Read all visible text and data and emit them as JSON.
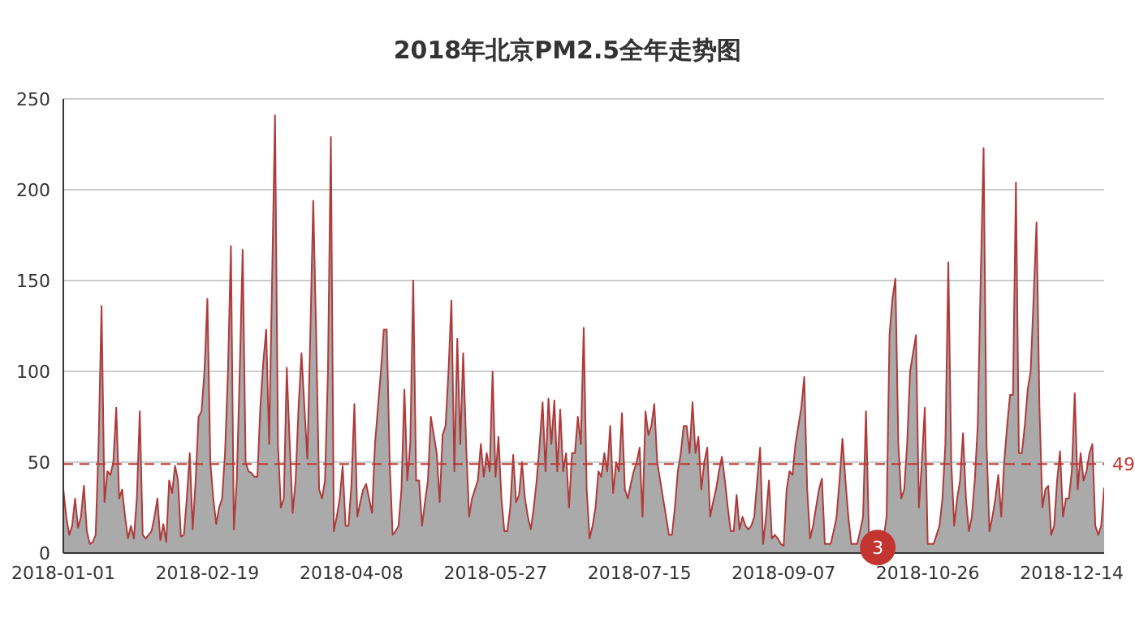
{
  "chart_data": {
    "type": "area",
    "title": "2018年北京PM2.5全年走势图",
    "categories": [
      "2018-01-01",
      null,
      null,
      null,
      null,
      null,
      null,
      null,
      null,
      null,
      null,
      null,
      null,
      null,
      null,
      null,
      null,
      null,
      null,
      null,
      null,
      null,
      null,
      null,
      null,
      null,
      null,
      null,
      null,
      null,
      null,
      null,
      null,
      null,
      null,
      null,
      null,
      null,
      null,
      null,
      null,
      null,
      null,
      null,
      null,
      null,
      null,
      null,
      null,
      "2018-02-19",
      null,
      null,
      null,
      null,
      null,
      null,
      null,
      null,
      null,
      null,
      null,
      null,
      null,
      null,
      null,
      null,
      null,
      null,
      null,
      null,
      null,
      null,
      null,
      null,
      null,
      null,
      null,
      null,
      null,
      null,
      null,
      null,
      null,
      null,
      null,
      null,
      null,
      null,
      null,
      null,
      null,
      null,
      null,
      null,
      null,
      null,
      null,
      null,
      "2018-04-08",
      null,
      null,
      null,
      null,
      null,
      null,
      null,
      null,
      null,
      null,
      null,
      null,
      null,
      null,
      null,
      null,
      null,
      null,
      null,
      null,
      null,
      null,
      null,
      null,
      null,
      null,
      null,
      null,
      null,
      null,
      null,
      null,
      null,
      null,
      null,
      null,
      null,
      null,
      null,
      null,
      null,
      null,
      null,
      null,
      null,
      null,
      null,
      null,
      "2018-05-27",
      null,
      null,
      null,
      null,
      null,
      null,
      null,
      null,
      null,
      null,
      null,
      null,
      null,
      null,
      null,
      null,
      null,
      null,
      null,
      null,
      null,
      null,
      null,
      null,
      null,
      null,
      null,
      null,
      null,
      null,
      null,
      null,
      null,
      null,
      null,
      null,
      null,
      null,
      null,
      null,
      null,
      null,
      null,
      null,
      null,
      null,
      null,
      null,
      "2018-07-15",
      null,
      null,
      null,
      null,
      null,
      null,
      null,
      null,
      null,
      null,
      null,
      null,
      null,
      null,
      null,
      null,
      null,
      null,
      null,
      null,
      null,
      null,
      null,
      null,
      null,
      null,
      null,
      null,
      null,
      null,
      null,
      null,
      null,
      null,
      null,
      null,
      null,
      null,
      null,
      null,
      null,
      null,
      null,
      null,
      null,
      null,
      null,
      null,
      "2018-09-07",
      null,
      null,
      null,
      null,
      null,
      null,
      null,
      null,
      null,
      null,
      null,
      null,
      null,
      null,
      null,
      null,
      null,
      null,
      null,
      null,
      null,
      null,
      null,
      null,
      null,
      null,
      null,
      null,
      null,
      null,
      null,
      null,
      null,
      null,
      null,
      null,
      null,
      null,
      null,
      null,
      null,
      null,
      null,
      null,
      null,
      null,
      null,
      null,
      "2018-10-26",
      null,
      null,
      null,
      null,
      null,
      null,
      null,
      null,
      null,
      null,
      null,
      null,
      null,
      null,
      null,
      null,
      null,
      null,
      null,
      null,
      null,
      null,
      null,
      null,
      null,
      null,
      null,
      null,
      null,
      null,
      null,
      null,
      null,
      null,
      null,
      null,
      null,
      null,
      null,
      null,
      null,
      null,
      null,
      null,
      null,
      null,
      null,
      null,
      "2018-12-14",
      null,
      null,
      null,
      null,
      null,
      null,
      null,
      null,
      null,
      null,
      null
    ],
    "series": [
      {
        "color": "#b03a3a",
        "values": [
          35,
          20,
          10,
          15,
          30,
          14,
          20,
          37,
          12,
          5,
          6,
          10,
          60,
          136,
          28,
          45,
          43,
          50,
          80,
          30,
          35,
          20,
          8,
          15,
          8,
          30,
          78,
          10,
          8,
          10,
          12,
          20,
          30,
          7,
          16,
          6,
          40,
          33,
          48,
          40,
          9,
          10,
          30,
          55,
          13,
          40,
          75,
          78,
          100,
          140,
          50,
          30,
          16,
          25,
          30,
          55,
          100,
          169,
          13,
          40,
          100,
          167,
          50,
          45,
          44,
          42,
          42,
          80,
          105,
          123,
          60,
          150,
          241,
          60,
          25,
          30,
          102,
          60,
          22,
          40,
          80,
          110,
          80,
          52,
          120,
          194,
          120,
          35,
          30,
          40,
          100,
          229,
          12,
          20,
          30,
          48,
          15,
          15,
          38,
          82,
          20,
          28,
          35,
          38,
          30,
          22,
          60,
          80,
          100,
          123,
          123,
          50,
          10,
          12,
          15,
          35,
          90,
          40,
          60,
          150,
          40,
          40,
          15,
          28,
          40,
          75,
          65,
          55,
          28,
          65,
          70,
          100,
          139,
          45,
          118,
          60,
          110,
          60,
          20,
          30,
          35,
          40,
          60,
          42,
          55,
          45,
          100,
          42,
          64,
          30,
          12,
          12,
          25,
          54,
          28,
          32,
          50,
          30,
          20,
          13,
          25,
          40,
          60,
          83,
          45,
          85,
          60,
          84,
          45,
          79,
          45,
          55,
          25,
          55,
          55,
          75,
          60,
          124,
          35,
          8,
          15,
          25,
          45,
          42,
          55,
          45,
          70,
          33,
          50,
          45,
          77,
          35,
          30,
          38,
          45,
          50,
          58,
          20,
          78,
          65,
          70,
          82,
          50,
          40,
          30,
          20,
          10,
          10,
          25,
          45,
          55,
          70,
          70,
          55,
          83,
          55,
          64,
          35,
          50,
          58,
          20,
          28,
          35,
          45,
          53,
          40,
          25,
          12,
          12,
          32,
          13,
          20,
          15,
          13,
          15,
          20,
          40,
          58,
          5,
          20,
          40,
          8,
          10,
          8,
          5,
          4,
          35,
          45,
          43,
          60,
          70,
          80,
          97,
          35,
          8,
          15,
          25,
          35,
          41,
          5,
          5,
          5,
          12,
          20,
          40,
          63,
          40,
          20,
          5,
          5,
          5,
          12,
          20,
          78,
          10,
          5,
          4,
          3,
          5,
          8,
          20,
          120,
          140,
          151,
          60,
          30,
          35,
          60,
          100,
          110,
          120,
          25,
          50,
          80,
          5,
          5,
          5,
          10,
          15,
          30,
          60,
          160,
          50,
          15,
          30,
          40,
          66,
          30,
          12,
          20,
          40,
          70,
          150,
          223,
          60,
          12,
          20,
          30,
          43,
          20,
          50,
          70,
          87,
          87,
          204,
          55,
          55,
          70,
          90,
          100,
          140,
          182,
          80,
          25,
          35,
          37,
          10,
          15,
          40,
          56,
          20,
          30,
          30,
          45,
          88,
          35,
          55,
          40,
          45,
          55,
          60,
          15,
          10,
          15,
          36
        ]
      }
    ],
    "ylim": [
      0,
      250
    ],
    "yticks": [
      0,
      50,
      100,
      150,
      200,
      250
    ],
    "grid": "y",
    "ref_lines": [
      {
        "axis": "y",
        "value": 49,
        "label": "49",
        "color": "#c23531",
        "line_style": "dashed"
      }
    ],
    "annotations": [
      {
        "text": "3",
        "y": 3
      }
    ]
  }
}
